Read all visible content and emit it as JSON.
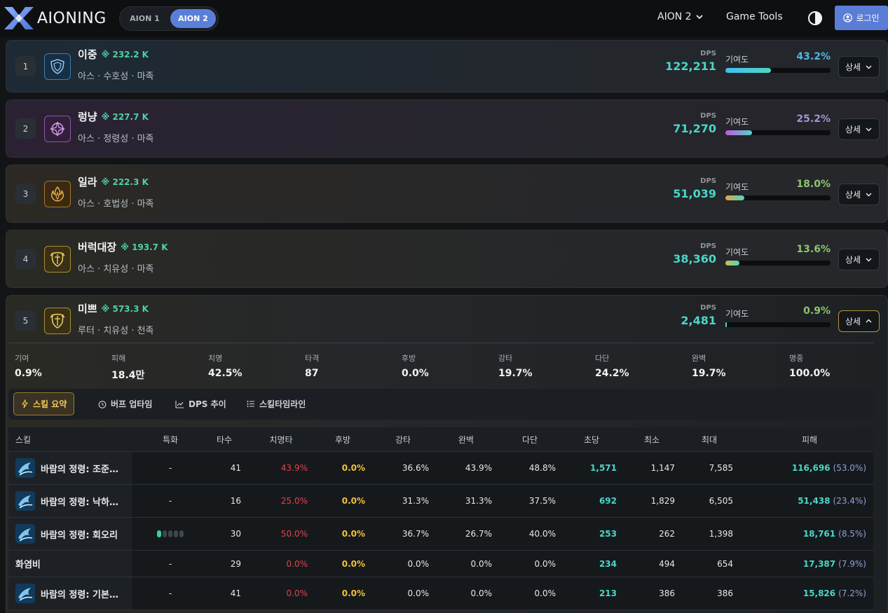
{
  "header": {
    "logo_text": "AIONING",
    "seg": [
      "AION 1",
      "AION 2"
    ],
    "nav_aion": "AION 2",
    "nav_tools": "Game Tools",
    "login": "로그인"
  },
  "players": [
    {
      "rank": "1",
      "name": "이중",
      "cp": "232.2 K",
      "info": "아스 · 수호성 · 마족",
      "dps_label": "DPS",
      "dps": "122,211",
      "contrib_label": "기여도",
      "contrib": "43.2%",
      "contrib_value": 0.432,
      "contrib_color": "#4fb8e0",
      "detail": "상세",
      "icon": "guardian-shield-icon"
    },
    {
      "rank": "2",
      "name": "렁냥",
      "cp": "227.7 K",
      "info": "아스 · 정령성 · 마족",
      "dps_label": "DPS",
      "dps": "71,270",
      "contrib_label": "기여도",
      "contrib": "25.2%",
      "contrib_value": 0.252,
      "contrib_color": "#9b97d6",
      "detail": "상세",
      "icon": "spiritmaster-star-icon"
    },
    {
      "rank": "3",
      "name": "일라",
      "cp": "222.3 K",
      "info": "아스 · 호법성 · 마족",
      "dps_label": "DPS",
      "dps": "51,039",
      "contrib_label": "기여도",
      "contrib": "18.0%",
      "contrib_value": 0.18,
      "contrib_color": "#8ec46e",
      "detail": "상세",
      "icon": "chanter-flame-icon"
    },
    {
      "rank": "4",
      "name": "버럭대장",
      "cp": "193.7 K",
      "info": "아스 · 치유성 · 마족",
      "dps_label": "DPS",
      "dps": "38,360",
      "contrib_label": "기여도",
      "contrib": "13.6%",
      "contrib_value": 0.136,
      "contrib_color": "#8ec46e",
      "detail": "상세",
      "icon": "cleric-crest-icon"
    },
    {
      "rank": "5",
      "name": "미쁘",
      "cp": "573.3 K",
      "info": "루터 · 치유성 · 천족",
      "dps_label": "DPS",
      "dps": "2,481",
      "contrib_label": "기여도",
      "contrib": "0.9%",
      "contrib_value": 0.009,
      "contrib_color": "#8ec46e",
      "detail": "상세",
      "icon": "cleric-crest-icon"
    }
  ],
  "stats": [
    {
      "label": "기여",
      "value": "0.9%"
    },
    {
      "label": "피해",
      "value": "18.4만"
    },
    {
      "label": "치명",
      "value": "42.5%"
    },
    {
      "label": "타격",
      "value": "87"
    },
    {
      "label": "후방",
      "value": "0.0%"
    },
    {
      "label": "강타",
      "value": "19.7%"
    },
    {
      "label": "다단",
      "value": "24.2%"
    },
    {
      "label": "완벽",
      "value": "19.7%"
    },
    {
      "label": "명중",
      "value": "100.0%"
    }
  ],
  "tabs": [
    "스킬 요약",
    "버프 업타임",
    "DPS 추이",
    "스킬타임라인"
  ],
  "table": {
    "headers": [
      "스킬",
      "특화",
      "타수",
      "치명타",
      "후방",
      "강타",
      "완벽",
      "다단",
      "초당",
      "최소",
      "최대",
      "피해"
    ],
    "rows": [
      {
        "skill": "바람의 정령: 조준…",
        "has_icon": true,
        "spec": "-",
        "hits": "41",
        "crit": "43.9%",
        "back": "0.0%",
        "strong": "36.6%",
        "perfect": "43.9%",
        "multi": "48.8%",
        "per_sec": "1,571",
        "min": "1,147",
        "max": "7,585",
        "dmg": "116,696",
        "dmg_pct": "(53.0%)"
      },
      {
        "skill": "바람의 정령: 낙하…",
        "has_icon": true,
        "spec": "-",
        "hits": "16",
        "crit": "25.0%",
        "back": "0.0%",
        "strong": "31.3%",
        "perfect": "31.3%",
        "multi": "37.5%",
        "per_sec": "692",
        "min": "1,829",
        "max": "6,505",
        "dmg": "51,438",
        "dmg_pct": "(23.4%)"
      },
      {
        "skill": "바람의 정령: 회오리",
        "has_icon": true,
        "spec": "",
        "spec_level": 1,
        "spec_max": 5,
        "hits": "30",
        "crit": "50.0%",
        "back": "0.0%",
        "strong": "36.7%",
        "perfect": "26.7%",
        "multi": "40.0%",
        "per_sec": "253",
        "min": "262",
        "max": "1,398",
        "dmg": "18,761",
        "dmg_pct": "(8.5%)"
      },
      {
        "skill": "화염비",
        "has_icon": false,
        "spec": "-",
        "hits": "29",
        "crit": "0.0%",
        "back": "0.0%",
        "strong": "0.0%",
        "perfect": "0.0%",
        "multi": "0.0%",
        "per_sec": "234",
        "min": "494",
        "max": "654",
        "dmg": "17,387",
        "dmg_pct": "(7.9%)"
      },
      {
        "skill": "바람의 정령: 기본…",
        "has_icon": true,
        "spec": "-",
        "hits": "41",
        "crit": "0.0%",
        "back": "0.0%",
        "strong": "0.0%",
        "perfect": "0.0%",
        "multi": "0.0%",
        "per_sec": "213",
        "min": "386",
        "max": "386",
        "dmg": "15,826",
        "dmg_pct": "(7.2%)"
      }
    ]
  }
}
